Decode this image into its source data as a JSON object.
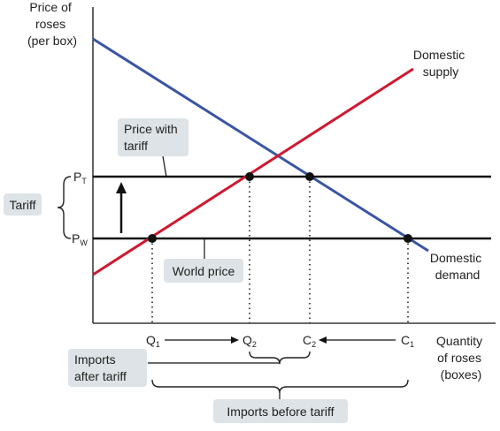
{
  "axes": {
    "y_label": [
      "Price of",
      "roses",
      "(per box)"
    ],
    "x_label": [
      "Quantity",
      "of roses",
      "(boxes)"
    ]
  },
  "curves": {
    "supply": {
      "label": [
        "Domestic",
        "supply"
      ],
      "color": "#d0182f"
    },
    "demand": {
      "label": [
        "Domestic",
        "demand"
      ],
      "color": "#3a55a4"
    }
  },
  "prices": {
    "pt": {
      "main": "P",
      "sub": "T"
    },
    "pw": {
      "main": "P",
      "sub": "W"
    }
  },
  "quantities": [
    {
      "main": "Q",
      "sub": "1"
    },
    {
      "main": "Q",
      "sub": "2"
    },
    {
      "main": "C",
      "sub": "2"
    },
    {
      "main": "C",
      "sub": "1"
    }
  ],
  "callouts": {
    "price_with_tariff": [
      "Price with",
      "tariff"
    ],
    "world_price": "World price",
    "tariff": "Tariff",
    "imports_after_tariff": [
      "Imports",
      "after tariff"
    ],
    "imports_before_tariff": "Imports before tariff"
  },
  "colors": {
    "callout_bg": "#dde3e6",
    "line": "#111111",
    "point": "#111111"
  }
}
